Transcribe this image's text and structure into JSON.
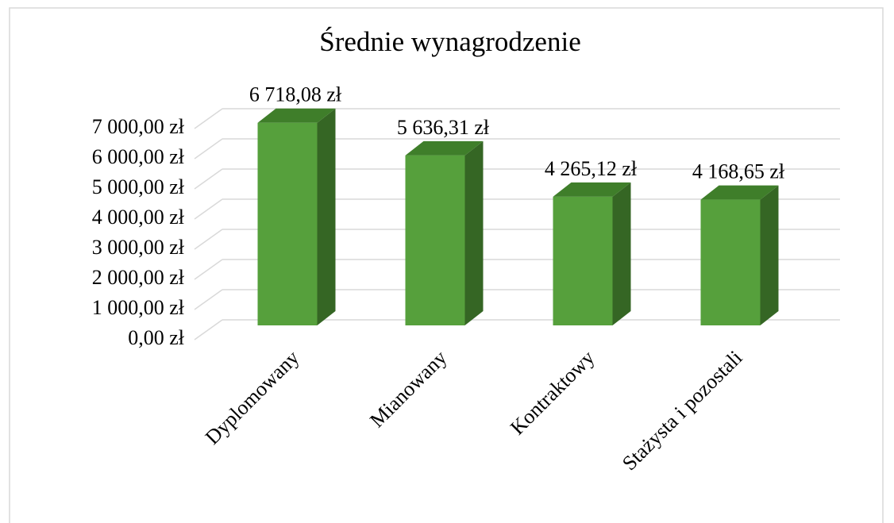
{
  "chart_data": {
    "type": "bar3d",
    "title": "Średnie wynagrodzenie",
    "categories": [
      "Dyplomowany",
      "Mianowany",
      "Kontraktowy",
      "Stażysta i pozostali"
    ],
    "values": [
      6718.08,
      5636.31,
      4265.12,
      4168.65
    ],
    "value_labels": [
      "6 718,08 zł",
      "5 636,31 zł",
      "4 265,12 zł",
      "4 168,65 zł"
    ],
    "color": "#56a03c",
    "ylim": [
      0,
      7000
    ],
    "yticks": [
      {
        "value": 0,
        "label": "0,00 zł"
      },
      {
        "value": 1000,
        "label": "1 000,00 zł"
      },
      {
        "value": 2000,
        "label": "2 000,00 zł"
      },
      {
        "value": 3000,
        "label": "3 000,00 zł"
      },
      {
        "value": 4000,
        "label": "4 000,00 zł"
      },
      {
        "value": 5000,
        "label": "5 000,00 zł"
      },
      {
        "value": 6000,
        "label": "6 000,00 zł"
      },
      {
        "value": 7000,
        "label": "7 000,00 zł"
      }
    ],
    "grid": true
  }
}
